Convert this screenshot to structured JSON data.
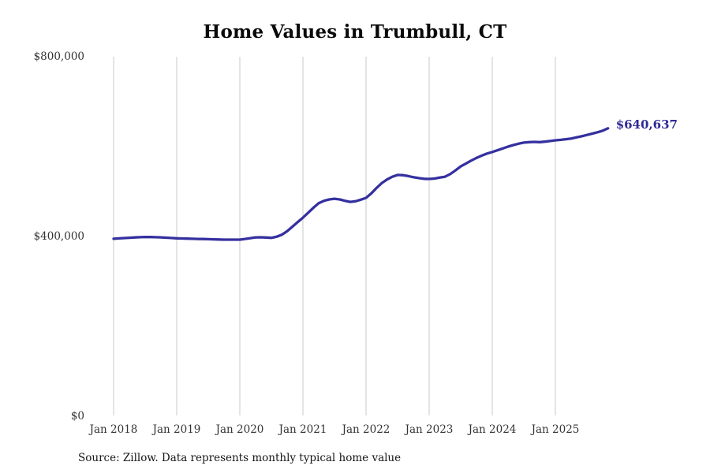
{
  "title": "Home Values in Trumbull, CT",
  "source_note": "Source: Zillow. Data represents monthly typical home value",
  "end_label": "$640,637",
  "colors": {
    "line": "#35309f",
    "end_label": "#2e2a96",
    "gridline": "#c9c9c9",
    "title": "#0a0a0a",
    "tick_label": "#333333",
    "source": "#161616",
    "background": "#ffffff"
  },
  "chart_data": {
    "type": "line",
    "title": "Home Values in Trumbull, CT",
    "xlabel": "",
    "ylabel": "",
    "ylim": [
      0,
      800000
    ],
    "grid": "vertical-only",
    "legend": "none",
    "frequency": "monthly",
    "x_start": "Jan 2018",
    "x_end": "Nov 2025",
    "last_value": 640637,
    "y_ticks": [
      {
        "label": "$0",
        "value": 0
      },
      {
        "label": "$400,000",
        "value": 400000
      },
      {
        "label": "$800,000",
        "value": 800000
      }
    ],
    "x_tick_labels": [
      "Jan 2018",
      "Jan 2019",
      "Jan 2020",
      "Jan 2021",
      "Jan 2022",
      "Jan 2023",
      "Jan 2024",
      "Jan 2025"
    ],
    "series": [
      {
        "name": "Typical home value",
        "values": [
          395000,
          395800,
          396500,
          397200,
          397900,
          398500,
          399000,
          398800,
          398400,
          398000,
          397400,
          396700,
          396000,
          395600,
          395300,
          395000,
          394600,
          394300,
          394000,
          393600,
          393300,
          393000,
          392900,
          392900,
          393000,
          394500,
          396300,
          398000,
          398300,
          397800,
          397000,
          399500,
          404000,
          412000,
          422000,
          432000,
          442000,
          453000,
          464000,
          474000,
          479500,
          482500,
          484000,
          482500,
          479500,
          477000,
          478500,
          482000,
          486000,
          496000,
          508000,
          519000,
          527000,
          533000,
          537000,
          536500,
          534500,
          532000,
          530000,
          528500,
          528000,
          529000,
          531000,
          533000,
          539000,
          547000,
          556000,
          562500,
          569000,
          575000,
          580000,
          584500,
          588000,
          592000,
          596000,
          600000,
          603500,
          606500,
          609000,
          610000,
          610500,
          610000,
          611000,
          612500,
          614000,
          615000,
          616500,
          618000,
          620500,
          623000,
          626000,
          629000,
          632000,
          635500,
          640637
        ]
      }
    ]
  }
}
